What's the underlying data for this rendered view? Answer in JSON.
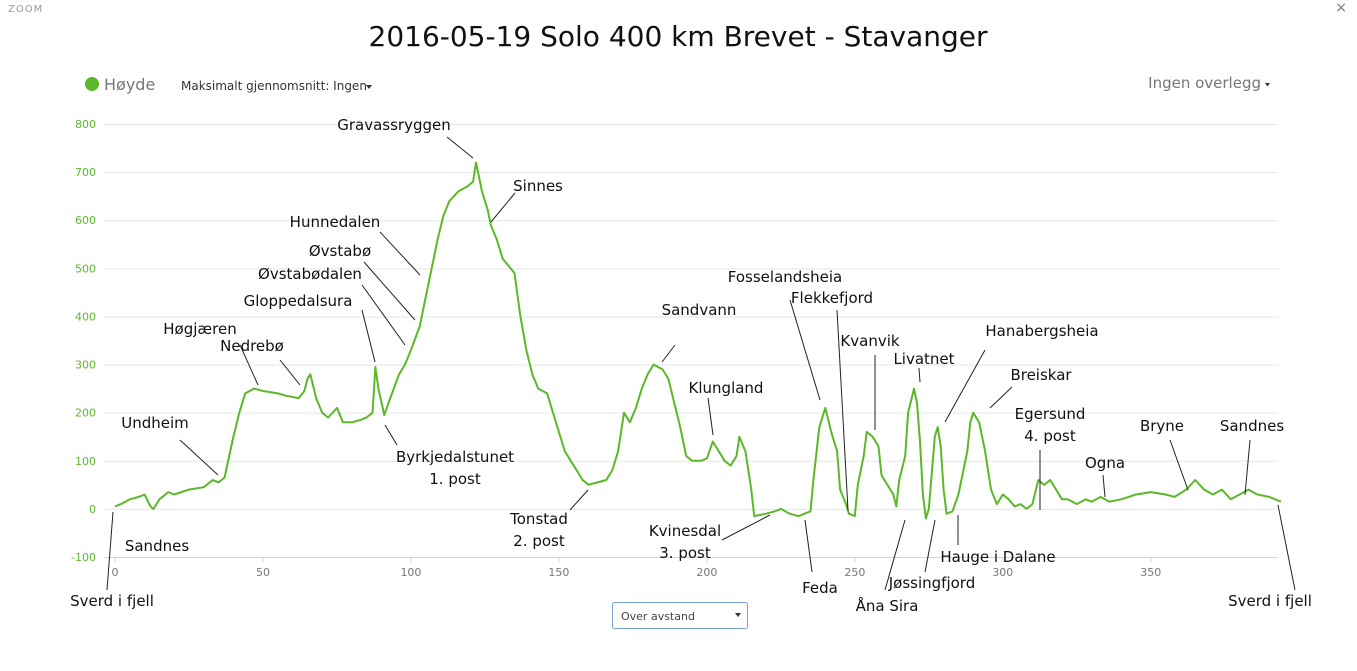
{
  "ui": {
    "zoom": "ZOOM",
    "close": "×",
    "average": "Maksimalt gjennomsnitt: Ingen",
    "overlay": "Ingen overlegg",
    "select": "Over avstand"
  },
  "chart_data": {
    "type": "line",
    "title": "2016-05-19 Solo 400 km Brevet - Stavanger",
    "x": [
      0,
      2,
      5,
      8,
      10,
      12,
      13,
      15,
      18,
      20,
      25,
      30,
      33,
      35,
      37,
      40,
      42,
      44,
      47,
      50,
      55,
      58,
      62,
      64,
      65,
      66,
      68,
      70,
      72,
      75,
      77,
      80,
      83,
      85,
      87,
      88,
      89,
      91,
      93,
      96,
      98,
      100,
      103,
      105,
      107,
      109,
      111,
      113,
      116,
      119,
      121,
      122,
      124,
      126,
      127,
      129,
      131,
      133,
      135,
      137,
      139,
      141,
      143,
      146,
      148,
      150,
      152,
      154,
      156,
      158,
      160,
      163,
      166,
      168,
      170,
      172,
      174,
      176,
      178,
      180,
      182,
      185,
      187,
      189,
      191,
      193,
      195,
      198,
      200,
      202,
      204,
      206,
      208,
      210,
      211,
      213,
      215,
      216,
      220,
      223,
      225,
      228,
      231,
      233,
      235,
      236,
      238,
      240,
      242,
      244,
      245,
      247,
      248,
      250,
      251,
      253,
      254,
      256,
      258,
      259,
      261,
      263,
      264,
      265,
      267,
      268,
      270,
      271,
      272,
      273,
      274,
      275,
      277,
      278,
      279,
      280,
      281,
      283,
      285,
      286,
      288,
      289,
      290,
      292,
      294,
      296,
      298,
      300,
      302,
      304,
      306,
      308,
      310,
      312,
      314,
      316,
      318,
      320,
      322,
      325,
      328,
      330,
      333,
      336,
      340,
      345,
      350,
      355,
      358,
      362,
      365,
      368,
      371,
      374,
      377,
      380,
      383,
      386,
      390,
      394
    ],
    "series": [
      {
        "name": "Høyde",
        "color": "#5cb82a",
        "values": [
          5,
          10,
          20,
          25,
          30,
          5,
          0,
          20,
          35,
          30,
          40,
          45,
          60,
          55,
          65,
          150,
          200,
          240,
          250,
          245,
          240,
          235,
          230,
          245,
          270,
          280,
          230,
          200,
          190,
          210,
          180,
          180,
          185,
          190,
          200,
          295,
          250,
          195,
          230,
          280,
          300,
          330,
          380,
          440,
          500,
          560,
          610,
          640,
          660,
          670,
          680,
          720,
          660,
          620,
          590,
          560,
          520,
          505,
          490,
          400,
          330,
          280,
          250,
          240,
          200,
          160,
          120,
          100,
          80,
          60,
          50,
          55,
          60,
          80,
          120,
          200,
          180,
          210,
          250,
          280,
          300,
          290,
          270,
          220,
          170,
          110,
          100,
          100,
          105,
          140,
          120,
          100,
          90,
          110,
          150,
          120,
          40,
          -15,
          -10,
          -5,
          0,
          -10,
          -15,
          -10,
          -5,
          60,
          170,
          210,
          160,
          120,
          40,
          10,
          -10,
          -15,
          50,
          110,
          160,
          150,
          130,
          70,
          50,
          30,
          5,
          60,
          110,
          200,
          250,
          220,
          140,
          30,
          -20,
          0,
          150,
          170,
          130,
          40,
          -10,
          -5,
          30,
          60,
          120,
          180,
          200,
          180,
          120,
          40,
          10,
          30,
          20,
          5,
          10,
          0,
          10,
          60,
          50,
          60,
          40,
          20,
          20,
          10,
          20,
          15,
          25,
          15,
          20,
          30,
          35,
          30,
          25,
          40,
          60,
          40,
          30,
          40,
          20,
          30,
          40,
          30,
          25,
          15
        ]
      }
    ],
    "xlim": [
      0,
      394
    ],
    "xticks": [
      0,
      50,
      100,
      150,
      200,
      250,
      300,
      350
    ],
    "ylim": [
      -100,
      800
    ],
    "yticks": [
      -100,
      0,
      100,
      200,
      300,
      400,
      500,
      600,
      700,
      800
    ],
    "grid": true,
    "annotations": [
      [
        "Gravassryggen"
      ],
      [
        "Sinnes"
      ],
      [
        "Hunnedalen"
      ],
      [
        "Øvstabø"
      ],
      [
        "Øvstabødalen"
      ],
      [
        "Gloppedalsura"
      ],
      [
        "Høgjæren"
      ],
      [
        "Nedrebø"
      ],
      [
        "Undheim"
      ],
      [
        "Sandnes"
      ],
      [
        "Sverd i fjell"
      ],
      [
        "Byrkjedalstunet",
        "1. post"
      ],
      [
        "Tonstad",
        "2. post"
      ],
      [
        "Sandvann"
      ],
      [
        "Klungland"
      ],
      [
        "Kvinesdal",
        "3. post"
      ],
      [
        "Fosselandsheia"
      ],
      [
        "Flekkefjord"
      ],
      [
        "Kvanvik"
      ],
      [
        "Livatnet"
      ],
      [
        "Feda"
      ],
      [
        "Åna Sira"
      ],
      [
        "Jøssingfjord"
      ],
      [
        "Hanabergsheia"
      ],
      [
        "Breiskar"
      ],
      [
        "Hauge i Dalane"
      ],
      [
        "Egersund",
        "4. post"
      ],
      [
        "Ogna"
      ],
      [
        "Bryne"
      ],
      [
        "Sandnes"
      ],
      [
        "Sverd i fjell"
      ]
    ]
  }
}
